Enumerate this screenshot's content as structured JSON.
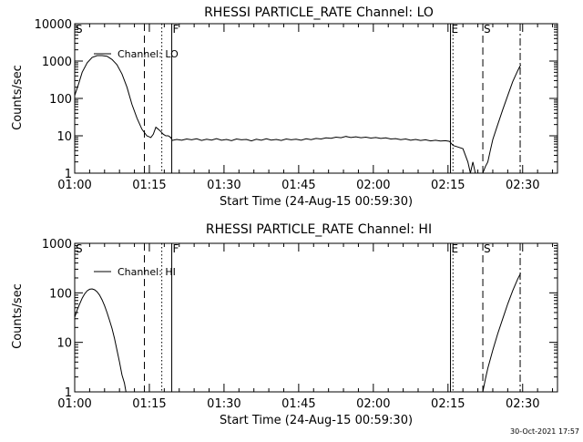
{
  "footer_timestamp": "30-Oct-2021 17:57",
  "chart_data": [
    {
      "type": "line",
      "title": "RHESSI PARTICLE_RATE Channel: LO",
      "xlabel": "Start Time (24-Aug-15 00:59:30)",
      "ylabel": "Counts/sec",
      "yscale": "log",
      "ylim": [
        1,
        10000
      ],
      "xlim_min": [
        0,
        97
      ],
      "grid": false,
      "legend": {
        "label": "Channel: LO",
        "placement": "top-left"
      },
      "x_ticks": [
        {
          "min": 0,
          "label": "01:00"
        },
        {
          "min": 15,
          "label": "01:15"
        },
        {
          "min": 30,
          "label": "01:30"
        },
        {
          "min": 45,
          "label": "01:45"
        },
        {
          "min": 60,
          "label": "02:00"
        },
        {
          "min": 75,
          "label": "02:15"
        },
        {
          "min": 90,
          "label": "02:30"
        }
      ],
      "y_ticks": [
        {
          "value": 1,
          "label": "1"
        },
        {
          "value": 10,
          "label": "10"
        },
        {
          "value": 100,
          "label": "100"
        },
        {
          "value": 1000,
          "label": "1000"
        },
        {
          "value": 10000,
          "label": "10000"
        }
      ],
      "markers": [
        {
          "min": 0,
          "style": "solid",
          "label": "S"
        },
        {
          "min": 14.0,
          "style": "dashed",
          "label": ""
        },
        {
          "min": 17.5,
          "style": "dotted",
          "label": ""
        },
        {
          "min": 19.5,
          "style": "solid",
          "label": "F"
        },
        {
          "min": 75.5,
          "style": "solid",
          "label": "E"
        },
        {
          "min": 76.0,
          "style": "dotted",
          "label": ""
        },
        {
          "min": 82.0,
          "style": "dashed",
          "label": "S"
        },
        {
          "min": 89.5,
          "style": "dashdot",
          "label": ""
        }
      ],
      "series": [
        {
          "name": "Channel: LO",
          "points": [
            [
              0,
              120
            ],
            [
              0.8,
              250
            ],
            [
              1.5,
              500
            ],
            [
              2.5,
              900
            ],
            [
              3.5,
              1250
            ],
            [
              4.5,
              1400
            ],
            [
              5.5,
              1400
            ],
            [
              6.5,
              1350
            ],
            [
              7.5,
              1100
            ],
            [
              8.5,
              800
            ],
            [
              9.5,
              450
            ],
            [
              10.5,
              200
            ],
            [
              11.5,
              70
            ],
            [
              12.5,
              30
            ],
            [
              13.5,
              15
            ],
            [
              14.5,
              10
            ],
            [
              15.3,
              9
            ],
            [
              15.8,
              11
            ],
            [
              16.3,
              17
            ],
            [
              16.8,
              15
            ],
            [
              17.3,
              13
            ],
            [
              17.8,
              11
            ],
            [
              18.3,
              10
            ],
            [
              18.8,
              10
            ],
            [
              19.3,
              9
            ],
            [
              19.6,
              7.5
            ],
            [
              20.5,
              8
            ],
            [
              21.5,
              7.6
            ],
            [
              22.5,
              8.2
            ],
            [
              23.5,
              7.8
            ],
            [
              24.5,
              8.3
            ],
            [
              25.5,
              7.5
            ],
            [
              26.5,
              8.1
            ],
            [
              27.5,
              7.7
            ],
            [
              28.5,
              8.4
            ],
            [
              29.5,
              7.6
            ],
            [
              30.5,
              8
            ],
            [
              31.5,
              7.4
            ],
            [
              32.5,
              8.2
            ],
            [
              33.5,
              7.8
            ],
            [
              34.5,
              8
            ],
            [
              35.5,
              7.3
            ],
            [
              36.5,
              8.1
            ],
            [
              37.5,
              7.6
            ],
            [
              38.5,
              8.3
            ],
            [
              39.5,
              7.7
            ],
            [
              40.5,
              8
            ],
            [
              41.5,
              7.5
            ],
            [
              42.5,
              8.2
            ],
            [
              43.5,
              7.8
            ],
            [
              44.5,
              8.1
            ],
            [
              45.5,
              7.6
            ],
            [
              46.5,
              8.3
            ],
            [
              47.5,
              7.9
            ],
            [
              48.5,
              8.5
            ],
            [
              49.5,
              8.2
            ],
            [
              50.5,
              8.8
            ],
            [
              51.5,
              8.6
            ],
            [
              52.5,
              9.2
            ],
            [
              53.5,
              8.9
            ],
            [
              54.5,
              9.6
            ],
            [
              55.5,
              9
            ],
            [
              56.5,
              9.4
            ],
            [
              57.5,
              8.9
            ],
            [
              58.5,
              9.2
            ],
            [
              59.5,
              8.7
            ],
            [
              60.5,
              9
            ],
            [
              61.5,
              8.5
            ],
            [
              62.5,
              8.8
            ],
            [
              63.5,
              8.2
            ],
            [
              64.5,
              8.4
            ],
            [
              65.5,
              7.9
            ],
            [
              66.5,
              8.2
            ],
            [
              67.5,
              7.6
            ],
            [
              68.5,
              8
            ],
            [
              69.5,
              7.5
            ],
            [
              70.5,
              7.8
            ],
            [
              71.5,
              7.3
            ],
            [
              72.5,
              7.6
            ],
            [
              73.5,
              7.2
            ],
            [
              74.5,
              7.4
            ],
            [
              75.3,
              7.1
            ],
            [
              76,
              5.5
            ],
            [
              77,
              5
            ],
            [
              78,
              4.5
            ],
            [
              79,
              2
            ],
            [
              79.5,
              1
            ],
            [
              80,
              2
            ],
            [
              80.5,
              1
            ],
            [
              81,
              1
            ],
            [
              81.5,
              1
            ],
            [
              82,
              1
            ],
            [
              82.5,
              1.5
            ],
            [
              83,
              2
            ],
            [
              83.5,
              4
            ],
            [
              84,
              8
            ],
            [
              85,
              20
            ],
            [
              86,
              50
            ],
            [
              87,
              120
            ],
            [
              88,
              280
            ],
            [
              89,
              550
            ],
            [
              89.6,
              800
            ]
          ]
        }
      ]
    },
    {
      "type": "line",
      "title": "RHESSI PARTICLE_RATE Channel: HI",
      "xlabel": "Start Time (24-Aug-15 00:59:30)",
      "ylabel": "Counts/sec",
      "yscale": "log",
      "ylim": [
        1,
        1000
      ],
      "xlim_min": [
        0,
        97
      ],
      "grid": false,
      "legend": {
        "label": "Channel: HI",
        "placement": "top-left"
      },
      "x_ticks": [
        {
          "min": 0,
          "label": "01:00"
        },
        {
          "min": 15,
          "label": "01:15"
        },
        {
          "min": 30,
          "label": "01:30"
        },
        {
          "min": 45,
          "label": "01:45"
        },
        {
          "min": 60,
          "label": "02:00"
        },
        {
          "min": 75,
          "label": "02:15"
        },
        {
          "min": 90,
          "label": "02:30"
        }
      ],
      "y_ticks": [
        {
          "value": 1,
          "label": "1"
        },
        {
          "value": 10,
          "label": "10"
        },
        {
          "value": 100,
          "label": "100"
        },
        {
          "value": 1000,
          "label": "1000"
        }
      ],
      "markers": [
        {
          "min": 0,
          "style": "solid",
          "label": "S"
        },
        {
          "min": 14.0,
          "style": "dashed",
          "label": ""
        },
        {
          "min": 17.5,
          "style": "dotted",
          "label": ""
        },
        {
          "min": 19.5,
          "style": "solid",
          "label": "F"
        },
        {
          "min": 75.5,
          "style": "solid",
          "label": "E"
        },
        {
          "min": 76.0,
          "style": "dotted",
          "label": ""
        },
        {
          "min": 82.0,
          "style": "dashed",
          "label": "S"
        },
        {
          "min": 89.5,
          "style": "dashdot",
          "label": ""
        }
      ],
      "series": [
        {
          "name": "Channel: HI",
          "points": [
            [
              0,
              32
            ],
            [
              0.5,
              45
            ],
            [
              1,
              60
            ],
            [
              1.5,
              78
            ],
            [
              2,
              95
            ],
            [
              2.5,
              110
            ],
            [
              3,
              118
            ],
            [
              3.5,
              120
            ],
            [
              4,
              115
            ],
            [
              4.5,
              105
            ],
            [
              5,
              90
            ],
            [
              5.5,
              72
            ],
            [
              6,
              55
            ],
            [
              6.5,
              40
            ],
            [
              7,
              28
            ],
            [
              7.5,
              19
            ],
            [
              8,
              12
            ],
            [
              8.5,
              7
            ],
            [
              9,
              4
            ],
            [
              9.5,
              2.2
            ],
            [
              10,
              1.5
            ],
            [
              10.3,
              1
            ]
          ]
        },
        {
          "name": "Channel: HI",
          "points": [
            [
              82,
              1
            ],
            [
              82.5,
              1.8
            ],
            [
              83,
              3
            ],
            [
              84,
              7
            ],
            [
              85,
              15
            ],
            [
              86,
              30
            ],
            [
              87,
              60
            ],
            [
              88,
              110
            ],
            [
              89,
              190
            ],
            [
              89.6,
              250
            ]
          ]
        }
      ]
    }
  ]
}
